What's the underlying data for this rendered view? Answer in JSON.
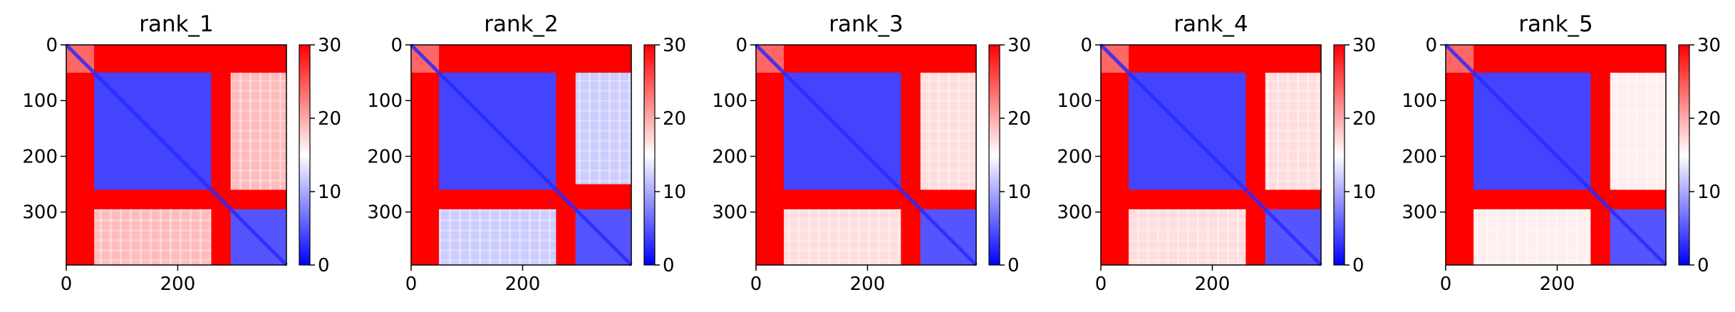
{
  "chart_data": [
    {
      "type": "heatmap",
      "title": "rank_1",
      "x_ticks": [
        0,
        200
      ],
      "y_ticks": [
        0,
        100,
        200,
        300
      ],
      "xlim": [
        0,
        395
      ],
      "ylim": [
        395,
        0
      ],
      "colorbar": {
        "ticks": [
          0,
          10,
          20,
          30
        ],
        "range": [
          0,
          30
        ],
        "cmap": "bwr"
      },
      "blocks": [
        {
          "r0": 0,
          "r1": 50,
          "c0": 0,
          "c1": 50,
          "value": 24
        },
        {
          "r0": 50,
          "r1": 260,
          "c0": 50,
          "c1": 260,
          "value": 4
        },
        {
          "r0": 50,
          "r1": 260,
          "c0": 295,
          "c1": 395,
          "value": 19
        },
        {
          "r0": 295,
          "r1": 395,
          "c0": 50,
          "c1": 260,
          "value": 19
        },
        {
          "r0": 295,
          "r1": 395,
          "c0": 295,
          "c1": 395,
          "value": 5
        }
      ],
      "background_value": 30
    },
    {
      "type": "heatmap",
      "title": "rank_2",
      "x_ticks": [
        0,
        200
      ],
      "y_ticks": [
        0,
        100,
        200,
        300
      ],
      "xlim": [
        0,
        395
      ],
      "ylim": [
        395,
        0
      ],
      "colorbar": {
        "ticks": [
          0,
          10,
          20,
          30
        ],
        "range": [
          0,
          30
        ],
        "cmap": "bwr"
      },
      "blocks": [
        {
          "r0": 0,
          "r1": 50,
          "c0": 0,
          "c1": 50,
          "value": 24
        },
        {
          "r0": 50,
          "r1": 260,
          "c0": 50,
          "c1": 260,
          "value": 4
        },
        {
          "r0": 50,
          "r1": 250,
          "c0": 295,
          "c1": 395,
          "value": 12
        },
        {
          "r0": 295,
          "r1": 395,
          "c0": 50,
          "c1": 260,
          "value": 12
        },
        {
          "r0": 295,
          "r1": 395,
          "c0": 295,
          "c1": 395,
          "value": 5
        }
      ],
      "background_value": 30
    },
    {
      "type": "heatmap",
      "title": "rank_3",
      "x_ticks": [
        0,
        200
      ],
      "y_ticks": [
        0,
        100,
        200,
        300
      ],
      "xlim": [
        0,
        395
      ],
      "ylim": [
        395,
        0
      ],
      "colorbar": {
        "ticks": [
          0,
          10,
          20,
          30
        ],
        "range": [
          0,
          30
        ],
        "cmap": "bwr"
      },
      "blocks": [
        {
          "r0": 0,
          "r1": 50,
          "c0": 0,
          "c1": 50,
          "value": 24
        },
        {
          "r0": 50,
          "r1": 260,
          "c0": 50,
          "c1": 260,
          "value": 4
        },
        {
          "r0": 50,
          "r1": 260,
          "c0": 295,
          "c1": 395,
          "value": 17
        },
        {
          "r0": 295,
          "r1": 395,
          "c0": 50,
          "c1": 260,
          "value": 17
        },
        {
          "r0": 295,
          "r1": 395,
          "c0": 295,
          "c1": 395,
          "value": 5
        }
      ],
      "background_value": 30
    },
    {
      "type": "heatmap",
      "title": "rank_4",
      "x_ticks": [
        0,
        200
      ],
      "y_ticks": [
        0,
        100,
        200,
        300
      ],
      "xlim": [
        0,
        395
      ],
      "ylim": [
        395,
        0
      ],
      "colorbar": {
        "ticks": [
          0,
          10,
          20,
          30
        ],
        "range": [
          0,
          30
        ],
        "cmap": "bwr"
      },
      "blocks": [
        {
          "r0": 0,
          "r1": 50,
          "c0": 0,
          "c1": 50,
          "value": 24
        },
        {
          "r0": 50,
          "r1": 260,
          "c0": 50,
          "c1": 260,
          "value": 4
        },
        {
          "r0": 50,
          "r1": 260,
          "c0": 295,
          "c1": 395,
          "value": 17
        },
        {
          "r0": 295,
          "r1": 395,
          "c0": 50,
          "c1": 260,
          "value": 17
        },
        {
          "r0": 295,
          "r1": 395,
          "c0": 295,
          "c1": 395,
          "value": 5
        }
      ],
      "background_value": 30
    },
    {
      "type": "heatmap",
      "title": "rank_5",
      "x_ticks": [
        0,
        200
      ],
      "y_ticks": [
        0,
        100,
        200,
        300
      ],
      "xlim": [
        0,
        395
      ],
      "ylim": [
        395,
        0
      ],
      "colorbar": {
        "ticks": [
          0,
          10,
          20,
          30
        ],
        "range": [
          0,
          30
        ],
        "cmap": "bwr"
      },
      "blocks": [
        {
          "r0": 0,
          "r1": 50,
          "c0": 0,
          "c1": 50,
          "value": 24
        },
        {
          "r0": 50,
          "r1": 260,
          "c0": 50,
          "c1": 260,
          "value": 4
        },
        {
          "r0": 50,
          "r1": 260,
          "c0": 295,
          "c1": 395,
          "value": 16
        },
        {
          "r0": 295,
          "r1": 395,
          "c0": 50,
          "c1": 260,
          "value": 16
        },
        {
          "r0": 295,
          "r1": 395,
          "c0": 295,
          "c1": 395,
          "value": 5
        }
      ],
      "background_value": 30
    }
  ]
}
